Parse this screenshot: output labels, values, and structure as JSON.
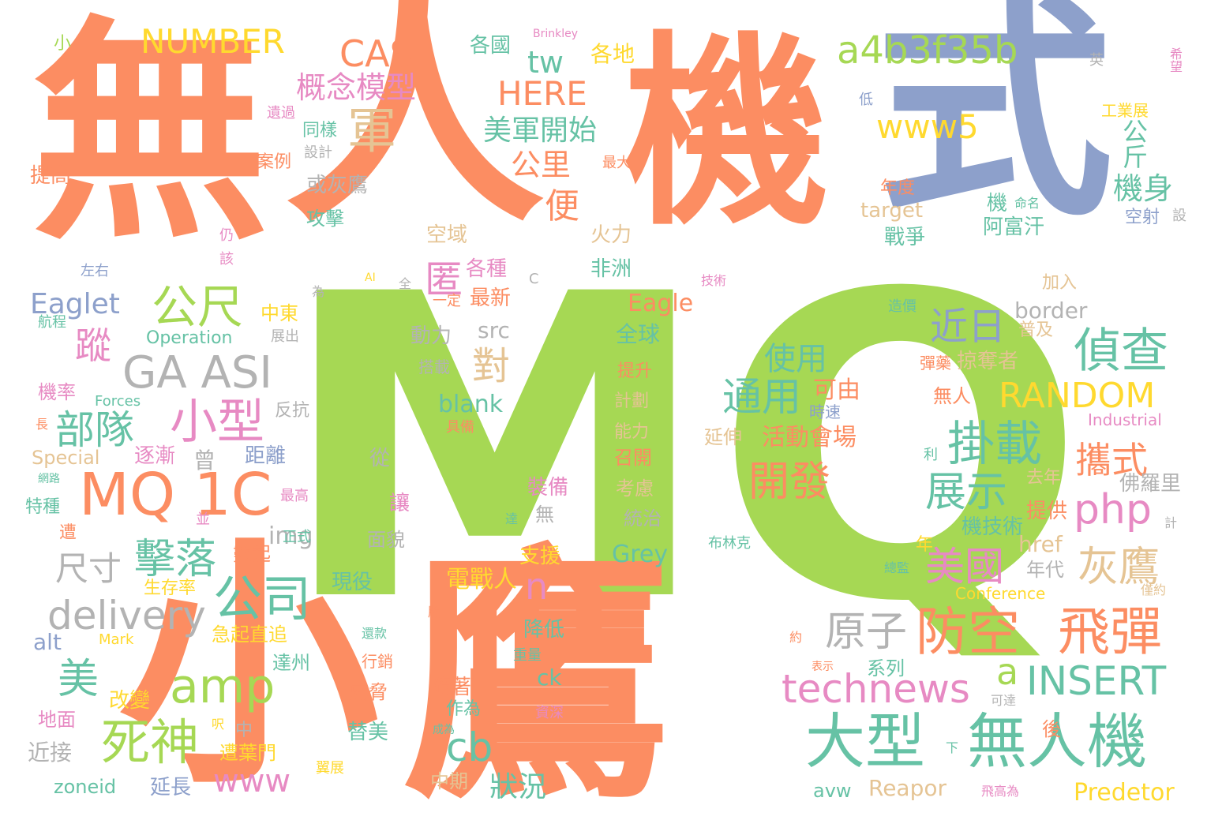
{
  "colors": {
    "orange": "#fc8d62",
    "blue": "#8da0cb",
    "green": "#a6d854",
    "teal": "#66c2a5",
    "pink": "#e78ac3",
    "yellow": "#ffd92f",
    "tan": "#e5c494",
    "gray": "#b3b3b3"
  },
  "words": {
    "w_mu": "無",
    "w_ren": "人",
    "w_ji": "機",
    "w_shi": "式",
    "w_mq": "MQ",
    "w_xiao": "小",
    "w_ying": "鷹",
    "w_number": "NUMBER",
    "w_cas": "CAS",
    "w_a4b": "a4b3f35b",
    "w_tw": "tw",
    "w_here": "HERE",
    "w_gainian": "概念模型",
    "w_jun": "軍",
    "w_www5": "www5",
    "w_meijun": "美軍開始",
    "w_gongli": "公里",
    "w_bian": "便",
    "w_gongjin": "公斤",
    "w_jishen": "機身",
    "w_gongchi": "公尺",
    "w_ni": "匿",
    "w_gaasi": "GA ASI",
    "w_jinri": "近日",
    "w_zhencha": "偵查",
    "w_zong": "蹤",
    "w_xiaoxing": "小型",
    "w_eaglet": "Eaglet",
    "w_budui": "部隊",
    "w_mq1c": "MQ 1C",
    "w_shiyong": "使用",
    "w_tongyong": "通用",
    "w_random": "RANDOM",
    "w_guazai": "掛載",
    "w_xieshi": "攜式",
    "w_kaifa": "開發",
    "w_zhanshi": "展示",
    "w_php": "php",
    "w_jiluo": "擊落",
    "w_chicun": "尺寸",
    "w_gongsi": "公司",
    "w_n": "n",
    "w_meiguo": "美國",
    "w_huiying": "灰鷹",
    "w_delivery": "delivery",
    "w_amp": "amp",
    "w_yuanzi": "原子",
    "w_fangkong": "防空",
    "w_feidan": "飛彈",
    "w_mei": "美",
    "w_sishen": "死神",
    "w_technews": "technews",
    "w_a": "a",
    "w_insert": "INSERT",
    "w_daxing": "大型",
    "w_wurenji": "無人機",
    "w_cb": "cb",
    "w_zhuangkuang": "狀況",
    "w_www": "www",
    "w_dui": "對",
    "w_huodong": "活動會場",
    "w_keyou": "可由",
    "w_operation": "Operation",
    "w_eagle": "Eagle",
    "w_border": "border",
    "w_src": "src",
    "w_blank": "blank",
    "w_img": "img",
    "w_grey": "Grey",
    "w_alt": "alt",
    "w_mark": "Mark",
    "w_special": "Special",
    "w_forces": "Forces",
    "w_zoneid": "zoneid",
    "w_avw": "avw",
    "w_reapor": "Reapor",
    "w_predetor": "Predetor",
    "w_conference": "Conference",
    "w_industrial": "Industrial",
    "w_href": "href",
    "w_target": "target",
    "w_brinkley": "Brinkley",
    "w_ck": "ck",
    "w_ai": "AI",
    "w_c": "C",
    "w_xiao2": "小",
    "w_geguo": "各國",
    "w_gedi": "各地",
    "w_ying2": "英",
    "w_xiwang": "希望",
    "w_gongyezhan": "工業展",
    "w_di": "低",
    "w_tongyang": "同樣",
    "w_yiguo": "遺過",
    "w_sheji": "設計",
    "w_anli": "案例",
    "w_zuida": "最大",
    "w_tigao": "提高",
    "w_huohuiying": "或灰鷹",
    "w_niandu": "年度",
    "w_mingming": "命名",
    "w_ji2": "機",
    "w_kongshe": "空射",
    "w_she": "設",
    "w_gongji": "攻擊",
    "w_kongyu": "空域",
    "w_huoli": "火力",
    "w_zhanzheng": "戰爭",
    "w_afuhan": "阿富汗",
    "w_reng": "仍",
    "w_gai": "該",
    "w_zuoyou": "左右",
    "w_gezhong": "各種",
    "w_feizhou": "非洲",
    "w_jishu": "技術",
    "w_jiaru": "加入",
    "w_wei": "為",
    "w_quan": "全",
    "w_yiding": "一定",
    "w_zuixin": "最新",
    "w_zaojia": "造價",
    "w_hangcheng": "航程",
    "w_zhongdong": "中東",
    "w_zhanchu": "展出",
    "w_dongli": "動力",
    "w_quanqiu": "全球",
    "w_puji": "普及",
    "w_danyao": "彈藥",
    "w_lueduozhe": "掠奪者",
    "w_tisheng": "提升",
    "w_jilv": "機率",
    "w_dazai": "搭載",
    "w_wuren": "無人",
    "w_jihua": "計劃",
    "w_shisu": "時速",
    "w_fankang": "反抗",
    "w_chang": "長",
    "w_juli": "距離",
    "w_juban": "具備",
    "w_yanshen": "延伸",
    "w_nengli": "能力",
    "w_zhujian": "逐漸",
    "w_ceng": "曾",
    "w_cong": "從",
    "w_zhaokai": "召開",
    "w_li": "利",
    "w_wanglu": "網路",
    "w_rang": "讓",
    "w_zhuangbei": "裝備",
    "w_kaolv": "考慮",
    "w_qunian": "去年",
    "w_foluoli": "佛羅里",
    "w_tezhong": "特種",
    "w_zuigao": "最高",
    "w_bing": "並",
    "w_da": "達",
    "w_wu": "無",
    "w_tongzhi": "統治",
    "w_tigong": "提供",
    "w_ji3": "計",
    "w_zao": "遭",
    "w_jijishu": "機技術",
    "w_zhengshi": "正式",
    "w_shuqi": "數起",
    "w_mianmao": "面貌",
    "w_nian": "年",
    "w_zhiyuan": "支援",
    "w_bulinke": "布林克",
    "w_niandai": "年代",
    "w_zongjian": "總監",
    "w_jinyue": "僅約",
    "w_shengcun": "生存率",
    "w_xianyi": "現役",
    "w_dianzhan": "電戰人",
    "w_ban": "版",
    "w_jiqi": "急起直追",
    "w_jiangdi": "降低",
    "w_zhongliang": "重量",
    "w_huanshen": "還款",
    "w_yue": "約",
    "w_biaoshi": "表示",
    "w_xilie": "系列",
    "w_dazhou": "達州",
    "w_hangxiao": "行銷",
    "w_weixie": "威脅",
    "w_suizhe": "隨著",
    "w_gaibian": "改變",
    "w_zuowei": "作為",
    "w_kelian": "可達",
    "w_dimian": "地面",
    "w_dai": "呎",
    "w_zhong": "中",
    "w_timei": "替美",
    "w_chengwei": "成為",
    "w_zishen": "資深",
    "w_hou": "後",
    "w_jinjie": "近接",
    "w_zaoyemen": "遭葉門",
    "w_xia": "下",
    "w_yanchang": "延長",
    "w_yizhan": "翼展",
    "w_zhongqi": "中期",
    "w_feigao": "飛高為"
  }
}
